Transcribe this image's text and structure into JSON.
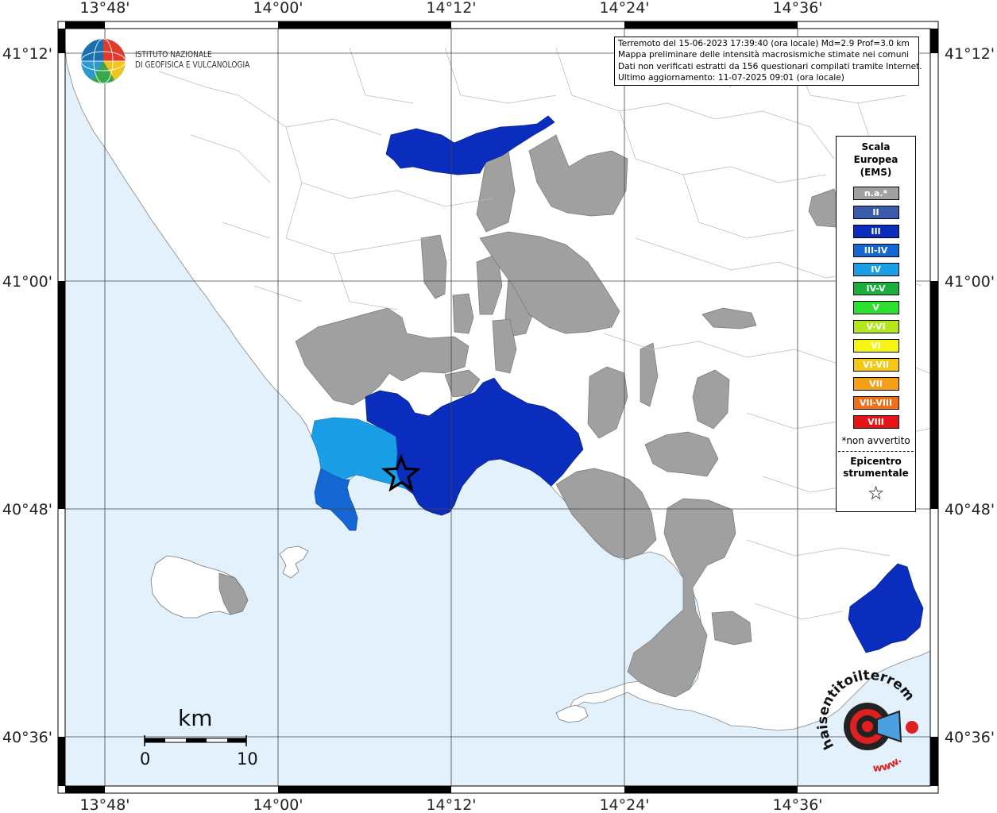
{
  "map": {
    "top_labels": [
      "13°48'",
      "14°00'",
      "14°12'",
      "14°24'",
      "14°36'"
    ],
    "bottom_labels": [
      "13°48'",
      "14°00'",
      "14°12'",
      "14°24'",
      "14°36'"
    ],
    "left_labels": [
      "41°12'",
      "41°00'",
      "40°48'",
      "40°36'"
    ],
    "right_labels": [
      "41°12'",
      "41°00'",
      "40°48'",
      "40°36'"
    ],
    "sea_color": "#e2f1fc",
    "land_color": "#ffffff",
    "na_color": "#a0a0a0"
  },
  "logo": {
    "line1": "ISTITUTO NAZIONALE",
    "line2": "DI GEOFISICA E VULCANOLOGIA"
  },
  "info": {
    "line1": "Terremoto del 15-06-2023 17:39:40 (ora locale) Md=2.9 Prof=3.0 km",
    "line2": "Mappa preliminare delle intensità macrosismiche stimate nei comuni",
    "line3": "Dati non verificati estratti da 156 questionari compilati tramite Internet.",
    "line4": "Ultimo aggiornamento: 11-07-2025 09:01 (ora locale)"
  },
  "legend": {
    "title1": "Scala",
    "title2": "Europea",
    "title3": "(EMS)",
    "items": [
      {
        "label": "n.a.*",
        "color": "#a0a0a0"
      },
      {
        "label": "II",
        "color": "#3a5aaa"
      },
      {
        "label": "III",
        "color": "#0a2dbe"
      },
      {
        "label": "III-IV",
        "color": "#1467d2"
      },
      {
        "label": "IV",
        "color": "#1a9fe6"
      },
      {
        "label": "IV-V",
        "color": "#1aaf3c"
      },
      {
        "label": "V",
        "color": "#2ee02e"
      },
      {
        "label": "V-VI",
        "color": "#b4e61e"
      },
      {
        "label": "VI",
        "color": "#f5f514"
      },
      {
        "label": "VI-VII",
        "color": "#f5c814"
      },
      {
        "label": "VII",
        "color": "#f5a014"
      },
      {
        "label": "VII-VIII",
        "color": "#f06e14"
      },
      {
        "label": "VIII",
        "color": "#e61414"
      }
    ],
    "note": "*non avvertito",
    "epicentre1": "Epicentro",
    "epicentre2": "strumentale",
    "star": "☆"
  },
  "scale": {
    "unit": "km",
    "start": "0",
    "end": "10"
  },
  "watermark": {
    "text": "haisentitoilterremoto.it",
    "url": "www."
  }
}
